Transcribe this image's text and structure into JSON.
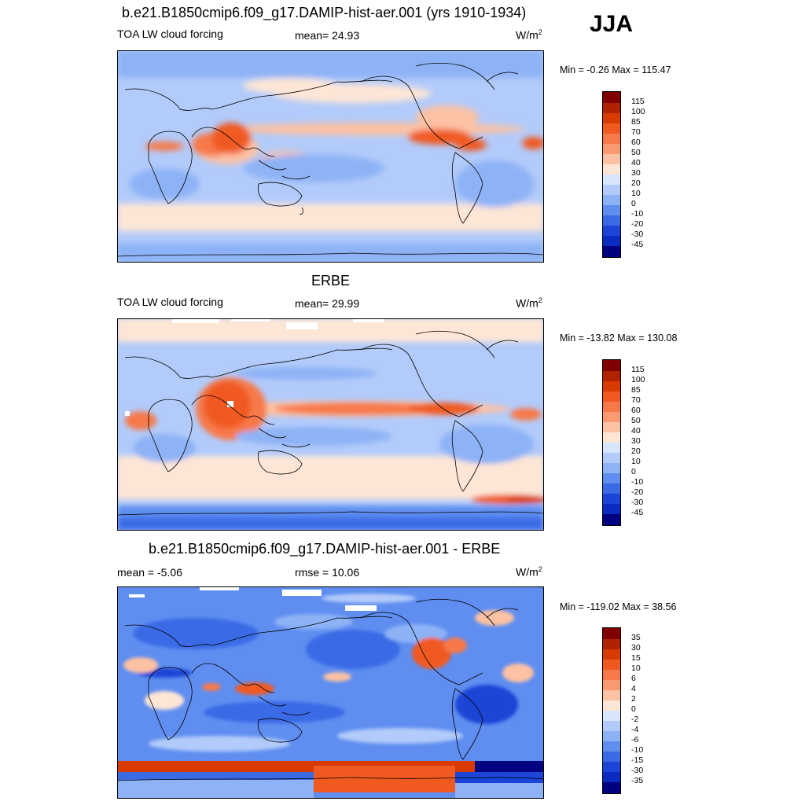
{
  "season": "JJA",
  "unit_base": "W/m",
  "unit_exp": "2",
  "panels": [
    {
      "title": "b.e21.B1850cmip6.f09_g17.DAMIP-hist-aer.001 (yrs 1910-1934)",
      "left_label": "TOA LW cloud forcing",
      "center_label": "mean=  24.93",
      "minmax": "Min =  -0.26 Max = 115.47",
      "colorbar_labels": [
        "115",
        "100",
        "85",
        "70",
        "60",
        "50",
        "40",
        "30",
        "20",
        "10",
        "0",
        "-10",
        "-20",
        "-30",
        "-45"
      ]
    },
    {
      "title": "ERBE",
      "left_label": "TOA LW cloud forcing",
      "center_label": "mean=  29.99",
      "minmax": "Min = -13.82 Max = 130.08",
      "colorbar_labels": [
        "115",
        "100",
        "85",
        "70",
        "60",
        "50",
        "40",
        "30",
        "20",
        "10",
        "0",
        "-10",
        "-20",
        "-30",
        "-45"
      ]
    },
    {
      "title": "b.e21.B1850cmip6.f09_g17.DAMIP-hist-aer.001 - ERBE",
      "left_label": "mean =  -5.06",
      "center_label": "rmse =  10.06",
      "minmax": "Min = -119.02 Max =  38.56",
      "colorbar_labels": [
        "35",
        "30",
        "15",
        "10",
        "6",
        "4",
        "2",
        "0",
        "-2",
        "-4",
        "-6",
        "-10",
        "-15",
        "-30",
        "-35"
      ]
    }
  ],
  "colors": {
    "scale_top_to_bottom": [
      "#800000",
      "#b22200",
      "#d83a00",
      "#f05a20",
      "#f7794a",
      "#fb9a72",
      "#fdc1a3",
      "#fee6d6",
      "#d8e6fc",
      "#b2cbfa",
      "#8db2f6",
      "#5f8ef0",
      "#3a6ae6",
      "#1c44d6",
      "#0a2ac0",
      "#000080"
    ],
    "land_outline": "#000000"
  }
}
